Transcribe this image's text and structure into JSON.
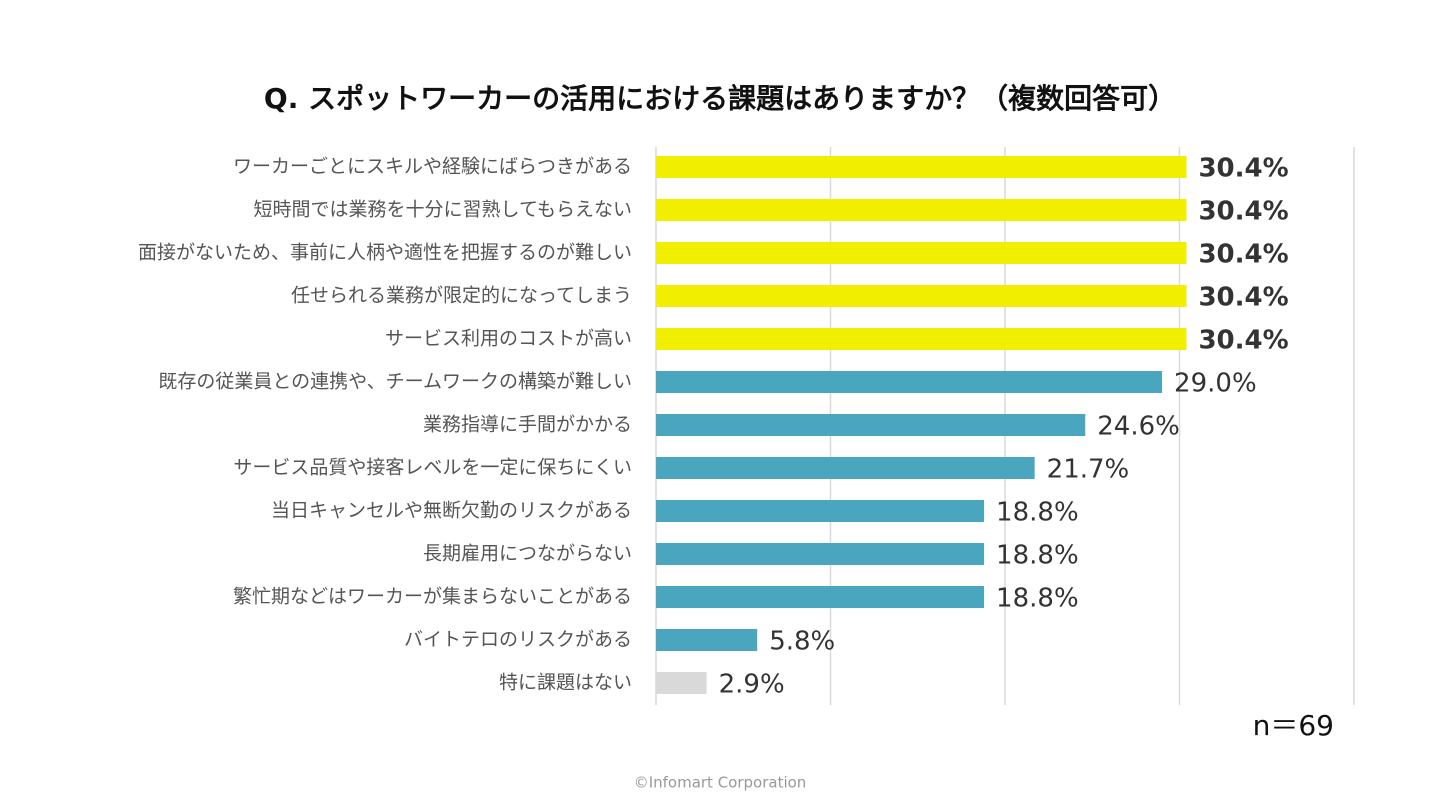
{
  "chart_data": {
    "type": "barh",
    "title": "Q. スポットワーカーの活用における課題はありますか？（複数回答可）",
    "categories": [
      "ワーカーごとにスキルや経験にばらつきがある",
      "短時間では業務を十分に習熟してもらえない",
      "面接がないため、事前に人柄や適性を把握するのが難しい",
      "任せられる業務が限定的になってしまう",
      "サービス利用のコストが高い",
      "既存の従業員との連携や、チームワークの構築が難しい",
      "業務指導に手間がかかる",
      "サービス品質や接客レベルを一定に保ちにくい",
      "当日キャンセルや無断欠勤のリスクがある",
      "長期雇用につながらない",
      "繁忙期などはワーカーが集まらないことがある",
      "バイトテロのリスクがある",
      "特に課題はない"
    ],
    "values": [
      30.4,
      30.4,
      30.4,
      30.4,
      30.4,
      29.0,
      24.6,
      21.7,
      18.8,
      18.8,
      18.8,
      5.8,
      2.9
    ],
    "value_labels": [
      "30.4%",
      "30.4%",
      "30.4%",
      "30.4%",
      "30.4%",
      "29.0%",
      "24.6%",
      "21.7%",
      "18.8%",
      "18.8%",
      "18.8%",
      "5.8%",
      "2.9%"
    ],
    "colors": [
      "#f2ee00",
      "#f2ee00",
      "#f2ee00",
      "#f2ee00",
      "#f2ee00",
      "#4aa5bf",
      "#4aa5bf",
      "#4aa5bf",
      "#4aa5bf",
      "#4aa5bf",
      "#4aa5bf",
      "#4aa5bf",
      "#d9d9d9"
    ],
    "bold_value_labels": [
      true,
      true,
      true,
      true,
      true,
      false,
      false,
      false,
      false,
      false,
      false,
      false,
      false
    ],
    "xlim": [
      0,
      40
    ],
    "xticks": [
      0,
      10,
      20,
      30,
      40
    ],
    "grid": true,
    "note": "n＝69",
    "footer": "©Infomart Corporation"
  }
}
